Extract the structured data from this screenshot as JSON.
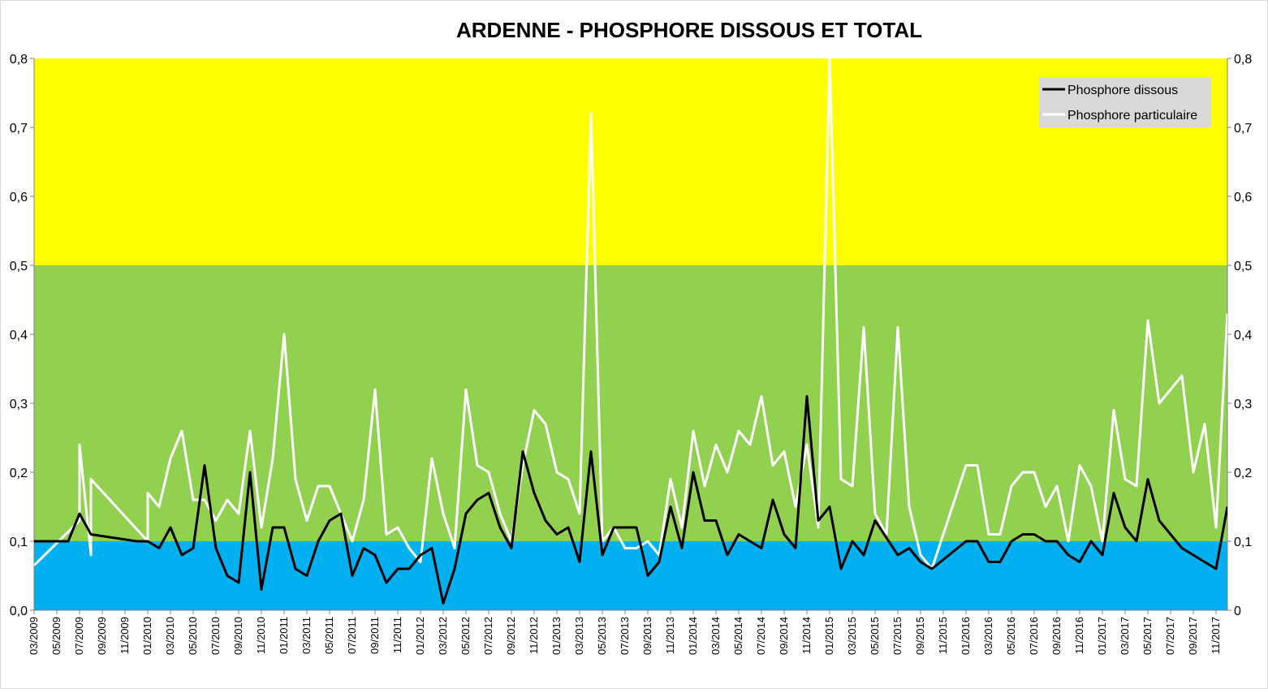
{
  "chart_data": {
    "type": "line",
    "title": "ARDENNE - PHOSPHORE DISSOUS ET TOTAL",
    "xlabel": "",
    "ylabel": "",
    "ylim": [
      0,
      0.8
    ],
    "y_ticks": [
      "0,0",
      "0,1",
      "0,2",
      "0,3",
      "0,4",
      "0,5",
      "0,6",
      "0,7",
      "0,8"
    ],
    "y2_ticks": [
      "0",
      "0,1",
      "0,2",
      "0,3",
      "0,4",
      "0,5",
      "0,6",
      "0,7",
      "0,8"
    ],
    "x_range": [
      "2009-03",
      "2017-12"
    ],
    "x_ticks": [
      "03/2009",
      "05/2009",
      "07/2009",
      "09/2009",
      "11/2009",
      "01/2010",
      "03/2010",
      "05/2010",
      "07/2010",
      "09/2010",
      "11/2010",
      "01/2011",
      "03/2011",
      "05/2011",
      "07/2011",
      "09/2011",
      "11/2011",
      "01/2012",
      "03/2012",
      "05/2012",
      "07/2012",
      "09/2012",
      "11/2012",
      "01/2013",
      "03/2013",
      "05/2013",
      "07/2013",
      "09/2013",
      "11/2013",
      "01/2014",
      "03/2014",
      "05/2014",
      "07/2014",
      "09/2014",
      "11/2014",
      "01/2015",
      "03/2015",
      "05/2015",
      "07/2015",
      "09/2015",
      "11/2015",
      "01/2016",
      "03/2016",
      "05/2016",
      "07/2016",
      "09/2016",
      "11/2016",
      "01/2017",
      "03/2017",
      "05/2017",
      "07/2017",
      "09/2017",
      "11/2017"
    ],
    "bands": [
      {
        "from": 0,
        "to": 0.1,
        "color": "#00b0f0"
      },
      {
        "from": 0.1,
        "to": 0.5,
        "color": "#92d050"
      },
      {
        "from": 0.5,
        "to": 0.8,
        "color": "#ffff00"
      }
    ],
    "legend_position": "top-right",
    "series": [
      {
        "name": "Phosphore dissous",
        "color": "#000000",
        "points": [
          [
            "2009-03",
            0.1
          ],
          [
            "2009-06",
            0.1
          ],
          [
            "2009-07",
            0.14
          ],
          [
            "2009-08",
            0.11
          ],
          [
            "2009-12",
            0.1
          ],
          [
            "2010-01",
            0.1
          ],
          [
            "2010-02",
            0.09
          ],
          [
            "2010-03",
            0.12
          ],
          [
            "2010-04",
            0.08
          ],
          [
            "2010-05",
            0.09
          ],
          [
            "2010-06",
            0.21
          ],
          [
            "2010-07",
            0.09
          ],
          [
            "2010-08",
            0.05
          ],
          [
            "2010-09",
            0.04
          ],
          [
            "2010-10",
            0.2
          ],
          [
            "2010-11",
            0.03
          ],
          [
            "2010-12",
            0.12
          ],
          [
            "2011-01",
            0.12
          ],
          [
            "2011-02",
            0.06
          ],
          [
            "2011-03",
            0.05
          ],
          [
            "2011-04",
            0.1
          ],
          [
            "2011-05",
            0.13
          ],
          [
            "2011-06",
            0.14
          ],
          [
            "2011-07",
            0.05
          ],
          [
            "2011-08",
            0.09
          ],
          [
            "2011-09",
            0.08
          ],
          [
            "2011-10",
            0.04
          ],
          [
            "2011-11",
            0.06
          ],
          [
            "2011-12",
            0.06
          ],
          [
            "2012-01",
            0.08
          ],
          [
            "2012-02",
            0.09
          ],
          [
            "2012-03",
            0.01
          ],
          [
            "2012-04",
            0.06
          ],
          [
            "2012-05",
            0.14
          ],
          [
            "2012-06",
            0.16
          ],
          [
            "2012-07",
            0.17
          ],
          [
            "2012-08",
            0.12
          ],
          [
            "2012-09",
            0.09
          ],
          [
            "2012-10",
            0.23
          ],
          [
            "2012-11",
            0.17
          ],
          [
            "2012-12",
            0.13
          ],
          [
            "2013-01",
            0.11
          ],
          [
            "2013-02",
            0.12
          ],
          [
            "2013-03",
            0.07
          ],
          [
            "2013-04",
            0.23
          ],
          [
            "2013-05",
            0.08
          ],
          [
            "2013-06",
            0.12
          ],
          [
            "2013-08",
            0.12
          ],
          [
            "2013-09",
            0.05
          ],
          [
            "2013-10",
            0.07
          ],
          [
            "2013-11",
            0.15
          ],
          [
            "2013-12",
            0.09
          ],
          [
            "2014-01",
            0.2
          ],
          [
            "2014-02",
            0.13
          ],
          [
            "2014-03",
            0.13
          ],
          [
            "2014-04",
            0.08
          ],
          [
            "2014-05",
            0.11
          ],
          [
            "2014-07",
            0.09
          ],
          [
            "2014-08",
            0.16
          ],
          [
            "2014-09",
            0.11
          ],
          [
            "2014-10",
            0.09
          ],
          [
            "2014-11",
            0.31
          ],
          [
            "2014-12",
            0.13
          ],
          [
            "2015-01",
            0.15
          ],
          [
            "2015-02",
            0.06
          ],
          [
            "2015-03",
            0.1
          ],
          [
            "2015-04",
            0.08
          ],
          [
            "2015-05",
            0.13
          ],
          [
            "2015-07",
            0.08
          ],
          [
            "2015-08",
            0.09
          ],
          [
            "2015-09",
            0.07
          ],
          [
            "2015-10",
            0.06
          ],
          [
            "2016-01",
            0.1
          ],
          [
            "2016-02",
            0.1
          ],
          [
            "2016-03",
            0.07
          ],
          [
            "2016-04",
            0.07
          ],
          [
            "2016-05",
            0.1
          ],
          [
            "2016-06",
            0.11
          ],
          [
            "2016-07",
            0.11
          ],
          [
            "2016-08",
            0.1
          ],
          [
            "2016-09",
            0.1
          ],
          [
            "2016-10",
            0.08
          ],
          [
            "2016-11",
            0.07
          ],
          [
            "2016-12",
            0.1
          ],
          [
            "2017-01",
            0.08
          ],
          [
            "2017-02",
            0.17
          ],
          [
            "2017-03",
            0.12
          ],
          [
            "2017-04",
            0.1
          ],
          [
            "2017-05",
            0.19
          ],
          [
            "2017-06",
            0.13
          ],
          [
            "2017-08",
            0.09
          ],
          [
            "2017-11",
            0.06
          ],
          [
            "2017-12",
            0.15
          ]
        ]
      },
      {
        "name": "Phosphore particulaire",
        "color": "#ffffff",
        "points": [
          [
            "2009-03",
            0.065
          ],
          [
            "2009-07",
            0.13
          ],
          [
            "2009-07",
            0.24
          ],
          [
            "2009-08",
            0.08
          ],
          [
            "2009-08",
            0.19
          ],
          [
            "2010-01",
            0.1
          ],
          [
            "2010-01",
            0.17
          ],
          [
            "2010-02",
            0.15
          ],
          [
            "2010-03",
            0.22
          ],
          [
            "2010-04",
            0.26
          ],
          [
            "2010-05",
            0.16
          ],
          [
            "2010-06",
            0.16
          ],
          [
            "2010-07",
            0.13
          ],
          [
            "2010-08",
            0.16
          ],
          [
            "2010-09",
            0.14
          ],
          [
            "2010-10",
            0.26
          ],
          [
            "2010-11",
            0.12
          ],
          [
            "2010-12",
            0.22
          ],
          [
            "2011-01",
            0.4
          ],
          [
            "2011-02",
            0.19
          ],
          [
            "2011-03",
            0.13
          ],
          [
            "2011-04",
            0.18
          ],
          [
            "2011-05",
            0.18
          ],
          [
            "2011-07",
            0.1
          ],
          [
            "2011-08",
            0.16
          ],
          [
            "2011-09",
            0.32
          ],
          [
            "2011-10",
            0.11
          ],
          [
            "2011-11",
            0.12
          ],
          [
            "2011-12",
            0.09
          ],
          [
            "2012-01",
            0.07
          ],
          [
            "2012-02",
            0.22
          ],
          [
            "2012-03",
            0.14
          ],
          [
            "2012-04",
            0.09
          ],
          [
            "2012-05",
            0.32
          ],
          [
            "2012-06",
            0.21
          ],
          [
            "2012-07",
            0.2
          ],
          [
            "2012-08",
            0.14
          ],
          [
            "2012-09",
            0.1
          ],
          [
            "2012-10",
            0.21
          ],
          [
            "2012-11",
            0.29
          ],
          [
            "2012-12",
            0.27
          ],
          [
            "2013-01",
            0.2
          ],
          [
            "2013-02",
            0.19
          ],
          [
            "2013-03",
            0.14
          ],
          [
            "2013-04",
            0.72
          ],
          [
            "2013-05",
            0.1
          ],
          [
            "2013-06",
            0.12
          ],
          [
            "2013-07",
            0.09
          ],
          [
            "2013-08",
            0.09
          ],
          [
            "2013-09",
            0.1
          ],
          [
            "2013-10",
            0.08
          ],
          [
            "2013-11",
            0.19
          ],
          [
            "2013-12",
            0.12
          ],
          [
            "2014-01",
            0.26
          ],
          [
            "2014-02",
            0.18
          ],
          [
            "2014-03",
            0.24
          ],
          [
            "2014-04",
            0.2
          ],
          [
            "2014-05",
            0.26
          ],
          [
            "2014-06",
            0.24
          ],
          [
            "2014-07",
            0.31
          ],
          [
            "2014-08",
            0.21
          ],
          [
            "2014-09",
            0.23
          ],
          [
            "2014-10",
            0.15
          ],
          [
            "2014-11",
            0.24
          ],
          [
            "2014-12",
            0.12
          ],
          [
            "2015-01",
            0.8
          ],
          [
            "2015-02",
            0.19
          ],
          [
            "2015-03",
            0.18
          ],
          [
            "2015-04",
            0.41
          ],
          [
            "2015-05",
            0.14
          ],
          [
            "2015-06",
            0.11
          ],
          [
            "2015-07",
            0.41
          ],
          [
            "2015-08",
            0.15
          ],
          [
            "2015-09",
            0.08
          ],
          [
            "2015-10",
            0.06
          ],
          [
            "2016-01",
            0.21
          ],
          [
            "2016-02",
            0.21
          ],
          [
            "2016-03",
            0.11
          ],
          [
            "2016-04",
            0.11
          ],
          [
            "2016-05",
            0.18
          ],
          [
            "2016-06",
            0.2
          ],
          [
            "2016-07",
            0.2
          ],
          [
            "2016-08",
            0.15
          ],
          [
            "2016-09",
            0.18
          ],
          [
            "2016-10",
            0.1
          ],
          [
            "2016-11",
            0.21
          ],
          [
            "2016-12",
            0.18
          ],
          [
            "2017-01",
            0.1
          ],
          [
            "2017-02",
            0.29
          ],
          [
            "2017-03",
            0.19
          ],
          [
            "2017-04",
            0.18
          ],
          [
            "2017-05",
            0.42
          ],
          [
            "2017-06",
            0.3
          ],
          [
            "2017-08",
            0.34
          ],
          [
            "2017-09",
            0.2
          ],
          [
            "2017-10",
            0.27
          ],
          [
            "2017-11",
            0.12
          ],
          [
            "2017-12",
            0.43
          ]
        ]
      }
    ]
  },
  "legend": {
    "items": [
      {
        "label": "Phosphore dissous"
      },
      {
        "label": "Phosphore particulaire"
      }
    ]
  }
}
